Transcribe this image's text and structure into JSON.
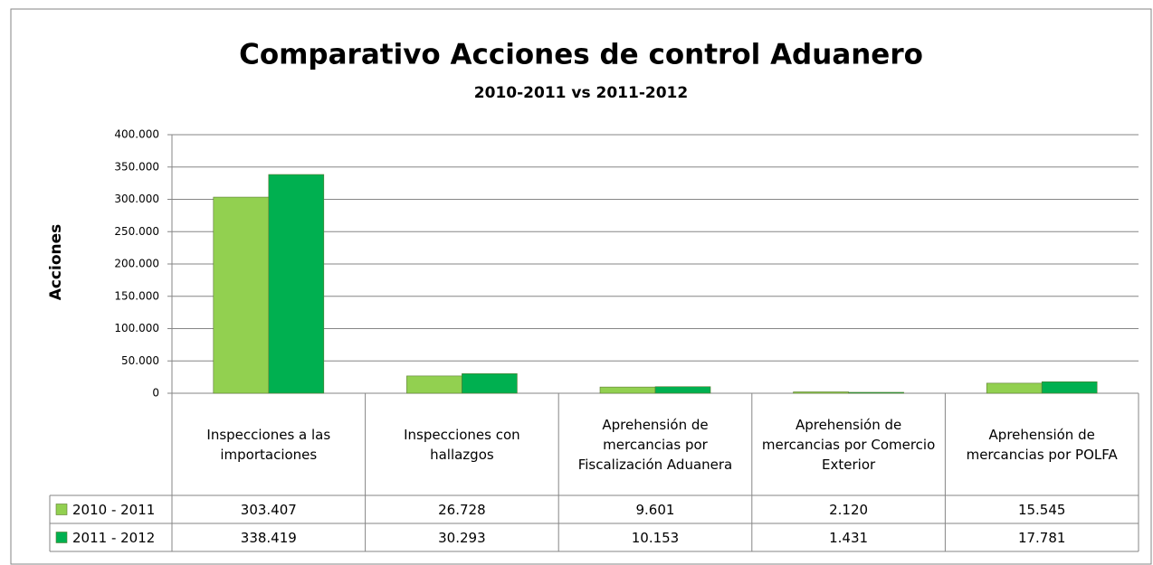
{
  "chart_data": {
    "type": "bar",
    "title": "Comparativo Acciones de control Aduanero",
    "subtitle": "2010-2011 vs 2011-2012",
    "y_label": "Acciones",
    "categories": [
      "Inspecciones a las importaciones",
      "Inspecciones con hallazgos",
      "Aprehensión de mercancias por Fiscalización Aduanera",
      "Aprehensión de mercancias por Comercio Exterior",
      "Aprehensión de mercancias por POLFA"
    ],
    "series": [
      {
        "name": "2010 - 2011",
        "color": "#92d050",
        "values": [
          303407,
          26728,
          9601,
          2120,
          15545
        ],
        "value_labels": [
          "303.407",
          "26.728",
          "9.601",
          "2.120",
          "15.545"
        ]
      },
      {
        "name": "2011 - 2012",
        "color": "#00b050",
        "values": [
          338419,
          30293,
          10153,
          1431,
          17781
        ],
        "value_labels": [
          "338.419",
          "30.293",
          "10.153",
          "1.431",
          "17.781"
        ]
      }
    ],
    "ylim": [
      0,
      400000
    ],
    "yticks": [
      0,
      {
        "value": 50000,
        "label": "50.000"
      },
      {
        "value": 100000,
        "label": "100.000"
      },
      {
        "value": 150000,
        "label": "150.000"
      },
      {
        "value": 200000,
        "label": "200.000"
      },
      {
        "value": 250000,
        "label": "250.000"
      },
      {
        "value": 300000,
        "label": "300.000"
      },
      {
        "value": 350000,
        "label": "350.000"
      },
      {
        "value": 400000,
        "label": "400.000"
      }
    ],
    "grid": true,
    "data_table": true
  }
}
